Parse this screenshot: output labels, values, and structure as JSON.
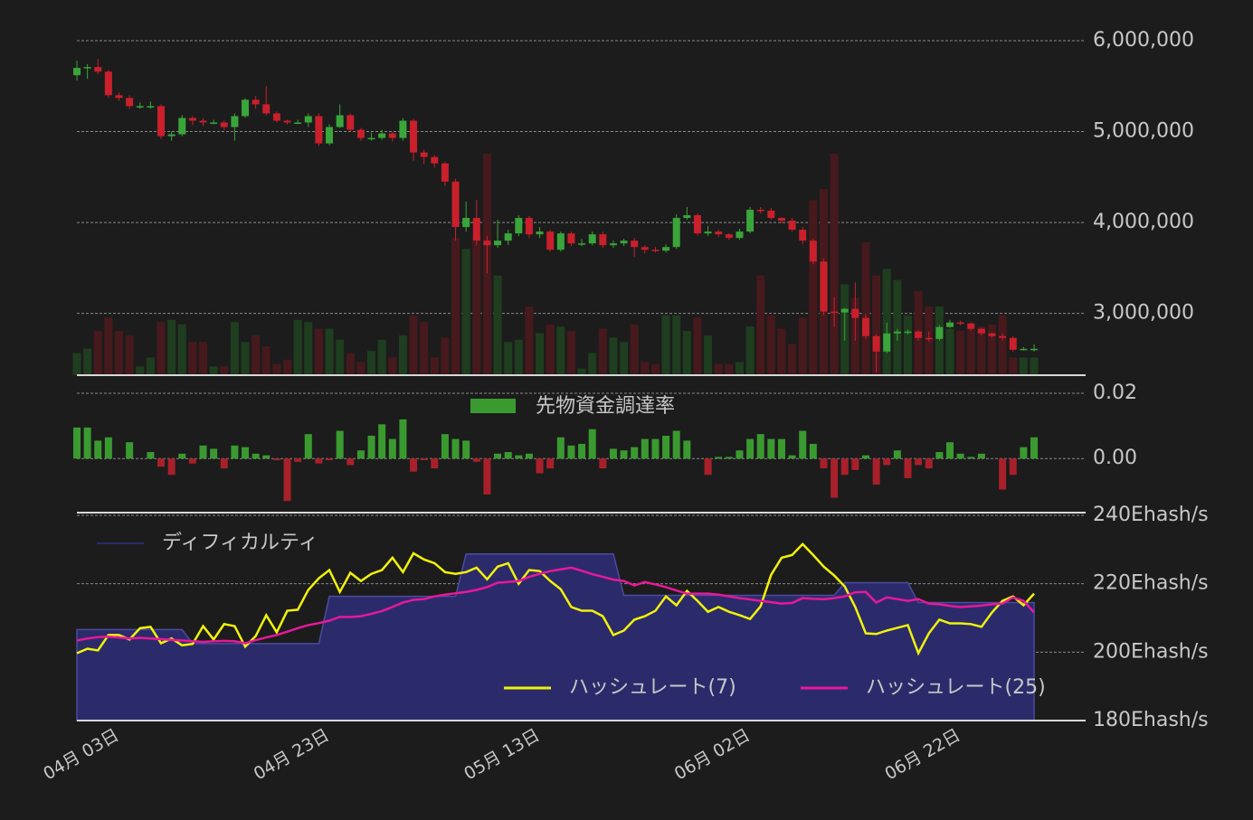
{
  "chart_data": [
    {
      "type": "candlestick",
      "up_color": "#3aa53a",
      "down_color": "#c9202c",
      "volume_up_color": "#1f3d1f",
      "volume_down_color": "#46191d",
      "ylim": [
        2320000,
        6000000
      ],
      "yticks": [
        {
          "value": 3000000,
          "label": "3,000,000"
        },
        {
          "value": 4000000,
          "label": "4,000,000"
        },
        {
          "value": 5000000,
          "label": "5,000,000"
        },
        {
          "value": 6000000,
          "label": "6,000,000"
        }
      ],
      "grid": true,
      "open": [
        5620000,
        5700000,
        5710000,
        5660000,
        5400000,
        5370000,
        5280000,
        5280000,
        5280000,
        4950000,
        4970000,
        5150000,
        5120000,
        5100000,
        5100000,
        5050000,
        5170000,
        5350000,
        5300000,
        5200000,
        5120000,
        5100000,
        5100000,
        5170000,
        4870000,
        5050000,
        5180000,
        5020000,
        4930000,
        4930000,
        4980000,
        4930000,
        5120000,
        4770000,
        4720000,
        4650000,
        4450000,
        3950000,
        4050000,
        3800000,
        3750000,
        3800000,
        3880000,
        4050000,
        3870000,
        3900000,
        3700000,
        3880000,
        3770000,
        3770000,
        3870000,
        3750000,
        3770000,
        3800000,
        3730000,
        3700000,
        3690000,
        3730000,
        4050000,
        4080000,
        3880000,
        3900000,
        3870000,
        3830000,
        3900000,
        4140000,
        4130000,
        4050000,
        4020000,
        3920000,
        3800000,
        3570000,
        3020000,
        3010000,
        3050000,
        2950000,
        2750000,
        2580000,
        2780000,
        2800000,
        2800000,
        2730000,
        2720000,
        2850000,
        2900000,
        2890000,
        2830000,
        2780000,
        2750000,
        2730000,
        2600000,
        2610000
      ],
      "high": [
        5780000,
        5740000,
        5800000,
        5680000,
        5430000,
        5400000,
        5320000,
        5330000,
        5300000,
        5000000,
        5180000,
        5170000,
        5150000,
        5130000,
        5120000,
        5200000,
        5370000,
        5390000,
        5500000,
        5220000,
        5130000,
        5130000,
        5200000,
        5200000,
        5080000,
        5300000,
        5200000,
        5040000,
        4990000,
        5020000,
        5000000,
        5150000,
        5140000,
        4800000,
        4740000,
        4670000,
        4480000,
        4230000,
        4250000,
        3850000,
        4030000,
        3920000,
        4080000,
        4070000,
        3950000,
        3920000,
        3900000,
        3900000,
        3820000,
        3900000,
        3900000,
        3800000,
        3820000,
        3830000,
        3750000,
        3730000,
        3760000,
        4090000,
        4170000,
        4100000,
        3960000,
        3920000,
        3880000,
        3930000,
        4170000,
        4170000,
        4160000,
        4060000,
        4050000,
        3950000,
        3820000,
        3600000,
        3180000,
        3060000,
        3340000,
        2990000,
        2770000,
        2900000,
        2830000,
        2820000,
        2820000,
        2800000,
        2870000,
        2930000,
        2920000,
        2900000,
        2840000,
        2790000,
        2780000,
        2750000,
        2630000,
        2660000
      ],
      "low": [
        5560000,
        5580000,
        5630000,
        5370000,
        5340000,
        5250000,
        5250000,
        5250000,
        4920000,
        4900000,
        4950000,
        5070000,
        5060000,
        5080000,
        5020000,
        4900000,
        5150000,
        5250000,
        5180000,
        5100000,
        5080000,
        5080000,
        5050000,
        4840000,
        4850000,
        5040000,
        5000000,
        4900000,
        4900000,
        4910000,
        4890000,
        4900000,
        4680000,
        4640000,
        4610000,
        4400000,
        3800000,
        3900000,
        3750000,
        3440000,
        3720000,
        3750000,
        3850000,
        3830000,
        3830000,
        3680000,
        3680000,
        3740000,
        3740000,
        3750000,
        3720000,
        3720000,
        3740000,
        3620000,
        3660000,
        3670000,
        3670000,
        3710000,
        4030000,
        3860000,
        3850000,
        3840000,
        3810000,
        3810000,
        3880000,
        4100000,
        4030000,
        3990000,
        3900000,
        3760000,
        3540000,
        2980000,
        2850000,
        2700000,
        2700000,
        2720000,
        2350000,
        2560000,
        2700000,
        2770000,
        2700000,
        2690000,
        2700000,
        2840000,
        2870000,
        2810000,
        2760000,
        2730000,
        2700000,
        2580000,
        2590000,
        2580000
      ],
      "close": [
        5700000,
        5710000,
        5660000,
        5400000,
        5370000,
        5280000,
        5280000,
        5280000,
        4950000,
        4970000,
        5150000,
        5120000,
        5100000,
        5100000,
        5050000,
        5170000,
        5350000,
        5300000,
        5200000,
        5120000,
        5100000,
        5100000,
        5170000,
        4870000,
        5050000,
        5180000,
        5020000,
        4930000,
        4930000,
        4980000,
        4930000,
        5120000,
        4770000,
        4720000,
        4650000,
        4450000,
        3950000,
        4050000,
        3800000,
        3750000,
        3800000,
        3880000,
        4050000,
        3870000,
        3900000,
        3700000,
        3880000,
        3770000,
        3770000,
        3870000,
        3750000,
        3770000,
        3800000,
        3730000,
        3700000,
        3690000,
        3730000,
        4050000,
        4080000,
        3880000,
        3900000,
        3870000,
        3830000,
        3900000,
        4140000,
        4130000,
        4050000,
        4020000,
        3920000,
        3800000,
        3570000,
        3020000,
        3010000,
        3050000,
        2950000,
        2750000,
        2580000,
        2780000,
        2800000,
        2800000,
        2730000,
        2720000,
        2850000,
        2900000,
        2890000,
        2830000,
        2780000,
        2750000,
        2730000,
        2600000,
        2610000,
        2610000
      ],
      "volume": [
        10,
        12,
        20,
        26,
        20,
        18,
        4,
        8,
        24,
        25,
        23,
        15,
        15,
        4,
        4,
        24,
        15,
        18,
        13,
        5,
        7,
        25,
        24,
        21,
        21,
        16,
        10,
        6,
        11,
        16,
        8,
        18,
        27,
        24,
        8,
        17,
        62,
        57,
        63,
        100,
        45,
        15,
        16,
        31,
        19,
        23,
        22,
        20,
        3,
        10,
        21,
        17,
        15,
        23,
        6,
        5,
        27,
        27,
        20,
        26,
        18,
        5,
        5,
        6,
        22,
        45,
        27,
        21,
        14,
        26,
        79,
        84,
        100,
        41,
        35,
        60,
        45,
        48,
        43,
        27,
        38,
        31,
        31,
        21,
        20,
        21,
        22,
        23,
        27,
        8,
        8,
        8
      ]
    },
    {
      "type": "bar",
      "ylim": [
        -0.016,
        0.02
      ],
      "yticks": [
        0.02,
        {
          "value": 0,
          "label": "0.00"
        }
      ],
      "grid": true,
      "down_color": "#a8202a",
      "series": [
        {
          "name": "先物資金調達率",
          "color": "#3a9a30",
          "values": [
            0.0095,
            0.0095,
            0.0055,
            0.0065,
            0,
            0.005,
            0,
            0.002,
            -0.0025,
            -0.005,
            0.0015,
            -0.0015,
            0.004,
            0.003,
            -0.003,
            0.004,
            0.0035,
            0.0015,
            0.001,
            -0.0005,
            -0.013,
            -0.001,
            0.0075,
            -0.0015,
            -0.0005,
            0.0085,
            -0.002,
            0.0025,
            0.007,
            0.0105,
            0.006,
            0.012,
            -0.004,
            -0.0005,
            -0.003,
            0.0075,
            0.006,
            0.0055,
            -0.001,
            -0.011,
            0.0015,
            0.002,
            0.001,
            0.0015,
            -0.0045,
            -0.003,
            0.0065,
            0.004,
            0.0045,
            0.009,
            -0.003,
            0.003,
            0.0025,
            0.0035,
            0.006,
            0.006,
            0.007,
            0.0085,
            0.0055,
            0,
            -0.005,
            0.0005,
            0.0005,
            0.0025,
            0.006,
            0.0075,
            0.006,
            0.006,
            0.001,
            0.0085,
            0.0045,
            -0.003,
            -0.012,
            -0.005,
            -0.0035,
            0.001,
            -0.008,
            -0.002,
            0.0025,
            -0.006,
            -0.002,
            -0.003,
            0.002,
            0.005,
            0.0015,
            0.0005,
            0.0015,
            0,
            -0.0095,
            -0.005,
            0.0035,
            0.0065
          ]
        }
      ]
    },
    {
      "type": "line",
      "ylim": [
        180,
        240
      ],
      "yticks": [
        {
          "value": 180,
          "label": "180Ehash/s"
        },
        {
          "value": 200,
          "label": "200Ehash/s"
        },
        {
          "value": 220,
          "label": "220Ehash/s"
        },
        {
          "value": 240,
          "label": "240Ehash/s"
        }
      ],
      "grid": true,
      "categories": [
        "04月 03日",
        null,
        null,
        null,
        null,
        null,
        null,
        null,
        null,
        null,
        null,
        null,
        null,
        null,
        null,
        null,
        null,
        null,
        null,
        null,
        "04月 23日",
        null,
        null,
        null,
        null,
        null,
        null,
        null,
        null,
        null,
        null,
        null,
        null,
        null,
        null,
        null,
        null,
        null,
        null,
        null,
        "05月 13日",
        null,
        null,
        null,
        null,
        null,
        null,
        null,
        null,
        null,
        null,
        null,
        null,
        null,
        null,
        null,
        null,
        null,
        null,
        null,
        "06月 02日",
        null,
        null,
        null,
        null,
        null,
        null,
        null,
        null,
        null,
        null,
        null,
        null,
        null,
        null,
        null,
        null,
        null,
        null,
        null,
        "06月 22日",
        null,
        null,
        null,
        null,
        null,
        null,
        null,
        null,
        null,
        null,
        null
      ],
      "series": [
        {
          "name": "ディフィカルティ",
          "type": "area",
          "color": "#2b2b6b",
          "line_color": "#4b4ba0",
          "values": [
            206.6,
            206.6,
            206.6,
            206.6,
            206.6,
            206.6,
            206.6,
            206.6,
            206.6,
            206.6,
            206.6,
            202.5,
            202.5,
            202.5,
            202.5,
            202.5,
            202.5,
            202.5,
            202.5,
            202.5,
            202.5,
            202.5,
            202.5,
            202.5,
            216.3,
            216.3,
            216.3,
            216.3,
            216.3,
            216.3,
            216.3,
            216.3,
            216.3,
            216.3,
            216.3,
            216.3,
            216.3,
            228.7,
            228.7,
            228.7,
            228.7,
            228.7,
            228.7,
            228.7,
            228.7,
            228.7,
            228.7,
            228.7,
            228.7,
            228.7,
            228.7,
            228.7,
            216.6,
            216.6,
            216.6,
            216.6,
            216.6,
            216.6,
            216.6,
            216.6,
            216.6,
            216.6,
            216.6,
            216.6,
            216.6,
            216.6,
            216.6,
            216.6,
            216.6,
            216.6,
            216.6,
            216.6,
            216.6,
            220.3,
            220.3,
            220.3,
            220.3,
            220.3,
            220.3,
            220.3,
            214.5,
            214.5,
            214.5,
            214.5,
            214.5,
            214.5,
            214.5,
            214.5,
            214.5,
            214.5,
            214.5,
            214.5
          ]
        },
        {
          "name": "ハッシュレート(7)",
          "type": "line",
          "color": "#f2f20a",
          "values": [
            199.7,
            201,
            200.5,
            205,
            205,
            203.7,
            207,
            207.4,
            202.6,
            204,
            202,
            202.4,
            207.6,
            203.7,
            208.2,
            207.6,
            201.6,
            204.7,
            210.8,
            205.8,
            212.1,
            212.4,
            218.2,
            221.6,
            224,
            217.6,
            223.2,
            220.8,
            222.9,
            224,
            227.6,
            223.4,
            228.9,
            227.1,
            226,
            223.4,
            222.9,
            223.4,
            224.7,
            221.3,
            225,
            226,
            220,
            224,
            223.7,
            220.8,
            218.4,
            213.2,
            212.1,
            212.1,
            210.5,
            205,
            206.3,
            209.5,
            210.5,
            212.1,
            216.3,
            213.7,
            217.9,
            215,
            211.8,
            213.2,
            211.8,
            210.8,
            209.7,
            213.4,
            222.6,
            227.6,
            228.4,
            231.6,
            228.4,
            225,
            222.4,
            219.2,
            213.2,
            205.5,
            205.3,
            206.3,
            207.1,
            207.9,
            199.7,
            205.5,
            209.5,
            208.4,
            208.4,
            208.2,
            207.4,
            211.6,
            215,
            216.3,
            213.7,
            217.1
          ]
        },
        {
          "name": "ハッシュレート(25)",
          "type": "line",
          "color": "#e8189a",
          "values": [
            203.4,
            204,
            204.4,
            204.5,
            204.3,
            204,
            204.2,
            204,
            203.8,
            203.6,
            203.4,
            203.2,
            203,
            203.2,
            203.3,
            203.2,
            202.6,
            203.5,
            204.3,
            205,
            206,
            207,
            207.9,
            208.5,
            209.2,
            210.3,
            210.3,
            210.5,
            211.2,
            212,
            213.2,
            214.5,
            215.3,
            215.5,
            216.3,
            216.8,
            217.2,
            217.6,
            218.2,
            219,
            220.3,
            220.5,
            220.8,
            222,
            222.9,
            223.7,
            224.2,
            224.7,
            223.8,
            222.8,
            222,
            221.2,
            220.8,
            219.5,
            220.5,
            219.8,
            219,
            218,
            217.1,
            217.1,
            217.1,
            216.8,
            216.3,
            215.8,
            215.4,
            215,
            214.6,
            214.2,
            214.4,
            215.8,
            215.6,
            215.5,
            215.8,
            216.3,
            217.5,
            217.6,
            214.5,
            216,
            215.5,
            215,
            215.5,
            214.2,
            214,
            213.5,
            213.2,
            213.4,
            213.6,
            214,
            214.2,
            216,
            215,
            211.6
          ]
        }
      ]
    }
  ]
}
